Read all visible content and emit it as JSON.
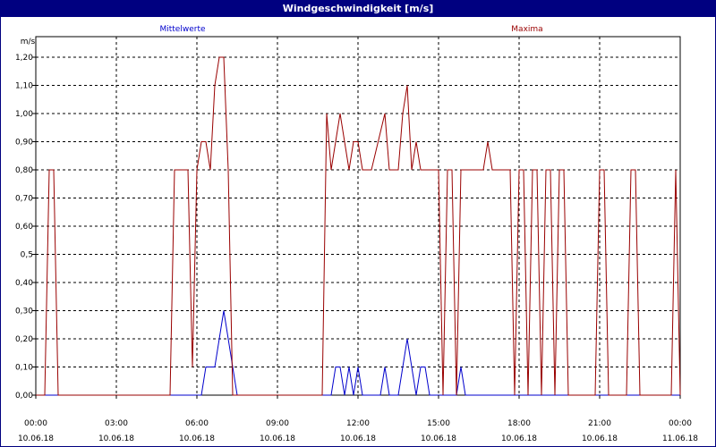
{
  "window": {
    "title": "Windgeschwindigkeit [m/s]"
  },
  "chart_data": {
    "type": "line",
    "title": "Windgeschwindigkeit [m/s]",
    "ylabel": "m/s",
    "ylim": [
      0,
      1.3
    ],
    "yticks": [
      {
        "value": 0.0,
        "label": "0,00"
      },
      {
        "value": 0.1,
        "label": "0,10"
      },
      {
        "value": 0.2,
        "label": "0,20"
      },
      {
        "value": 0.3,
        "label": "0,30"
      },
      {
        "value": 0.4,
        "label": "0,40"
      },
      {
        "value": 0.5,
        "label": "0,5"
      },
      {
        "value": 0.6,
        "label": "0,60"
      },
      {
        "value": 0.7,
        "label": "0,70"
      },
      {
        "value": 0.8,
        "label": "0,80"
      },
      {
        "value": 0.9,
        "label": "0,90"
      },
      {
        "value": 1.0,
        "label": "1,00"
      },
      {
        "value": 1.1,
        "label": "1,10"
      },
      {
        "value": 1.2,
        "label": "1,20"
      }
    ],
    "xlim": [
      "10.06.18 00:00",
      "11.06.18 00:00"
    ],
    "xticks": [
      {
        "time": "00:00",
        "date": "10.06.18"
      },
      {
        "time": "03:00",
        "date": "10.06.18"
      },
      {
        "time": "06:00",
        "date": "10.06.18"
      },
      {
        "time": "09:00",
        "date": "10.06.18"
      },
      {
        "time": "12:00",
        "date": "10.06.18"
      },
      {
        "time": "15:00",
        "date": "10.06.18"
      },
      {
        "time": "18:00",
        "date": "10.06.18"
      },
      {
        "time": "21:00",
        "date": "10.06.18"
      },
      {
        "time": "00:00",
        "date": "11.06.18"
      }
    ],
    "grid": true,
    "series": [
      {
        "name": "Mittelwerte",
        "color": "#0000cc",
        "x": [
          "00:00",
          "05:50",
          "06:00",
          "06:10",
          "06:20",
          "06:30",
          "06:40",
          "06:50",
          "07:00",
          "07:10",
          "07:20",
          "07:30",
          "10:40",
          "10:50",
          "11:00",
          "11:10",
          "11:20",
          "11:30",
          "11:40",
          "11:50",
          "12:00",
          "12:10",
          "12:20",
          "12:50",
          "13:00",
          "13:10",
          "13:20",
          "13:30",
          "13:40",
          "13:50",
          "14:00",
          "14:10",
          "14:20",
          "14:30",
          "14:40",
          "14:50",
          "15:40",
          "15:50",
          "16:00",
          "16:10",
          "24:00"
        ],
        "values": [
          0,
          0,
          0,
          0,
          0.1,
          0.1,
          0.1,
          0.2,
          0.3,
          0.2,
          0.1,
          0,
          0,
          0,
          0,
          0.1,
          0.1,
          0,
          0.1,
          0,
          0.1,
          0,
          0,
          0,
          0.1,
          0,
          0,
          0,
          0.1,
          0.2,
          0.1,
          0,
          0.1,
          0.1,
          0,
          0,
          0,
          0.1,
          0,
          0,
          0
        ]
      },
      {
        "name": "Maxima",
        "color": "#990000",
        "x": [
          "00:00",
          "00:20",
          "00:30",
          "00:40",
          "00:50",
          "01:00",
          "05:00",
          "05:10",
          "05:20",
          "05:30",
          "05:40",
          "05:50",
          "06:00",
          "06:10",
          "06:20",
          "06:30",
          "06:40",
          "06:50",
          "07:00",
          "07:10",
          "07:20",
          "07:30",
          "10:40",
          "10:50",
          "11:00",
          "11:10",
          "11:20",
          "11:30",
          "11:40",
          "11:50",
          "12:00",
          "12:10",
          "12:20",
          "12:30",
          "13:00",
          "13:10",
          "13:20",
          "13:30",
          "13:40",
          "13:50",
          "14:00",
          "14:10",
          "14:20",
          "14:30",
          "14:40",
          "14:50",
          "15:00",
          "15:10",
          "15:20",
          "15:30",
          "15:40",
          "15:50",
          "16:00",
          "16:10",
          "16:20",
          "16:40",
          "16:50",
          "17:00",
          "17:30",
          "17:40",
          "17:50",
          "18:00",
          "18:10",
          "18:20",
          "18:30",
          "18:40",
          "18:50",
          "19:00",
          "19:10",
          "19:20",
          "19:30",
          "19:40",
          "19:50",
          "20:00",
          "20:10",
          "20:20",
          "20:50",
          "21:00",
          "21:10",
          "21:20",
          "21:30",
          "21:40",
          "22:00",
          "22:10",
          "22:20",
          "22:30",
          "22:40",
          "23:30",
          "23:40",
          "23:50",
          "24:00"
        ],
        "values": [
          0,
          0,
          0.8,
          0.8,
          0,
          0,
          0,
          0.8,
          0.8,
          0.8,
          0.8,
          0.1,
          0.8,
          0.9,
          0.9,
          0.8,
          1.1,
          1.2,
          1.2,
          0.8,
          0,
          0,
          0,
          1.0,
          0.8,
          0.9,
          1.0,
          0.9,
          0.8,
          0.9,
          0.9,
          0.8,
          0.8,
          0.8,
          1.0,
          0.8,
          0.8,
          0.8,
          1.0,
          1.1,
          0.8,
          0.9,
          0.8,
          0.8,
          0.8,
          0.8,
          0.8,
          0,
          0.8,
          0.8,
          0,
          0.8,
          0.8,
          0.8,
          0.8,
          0.8,
          0.9,
          0.8,
          0.8,
          0.8,
          0,
          0.8,
          0.8,
          0,
          0.8,
          0.8,
          0,
          0.8,
          0.8,
          0,
          0.8,
          0.8,
          0,
          0,
          0,
          0,
          0,
          0.8,
          0.8,
          0,
          0,
          0,
          0,
          0.8,
          0.8,
          0,
          0,
          0,
          0,
          0.8,
          0
        ]
      }
    ],
    "legend": "top, above plot area"
  }
}
